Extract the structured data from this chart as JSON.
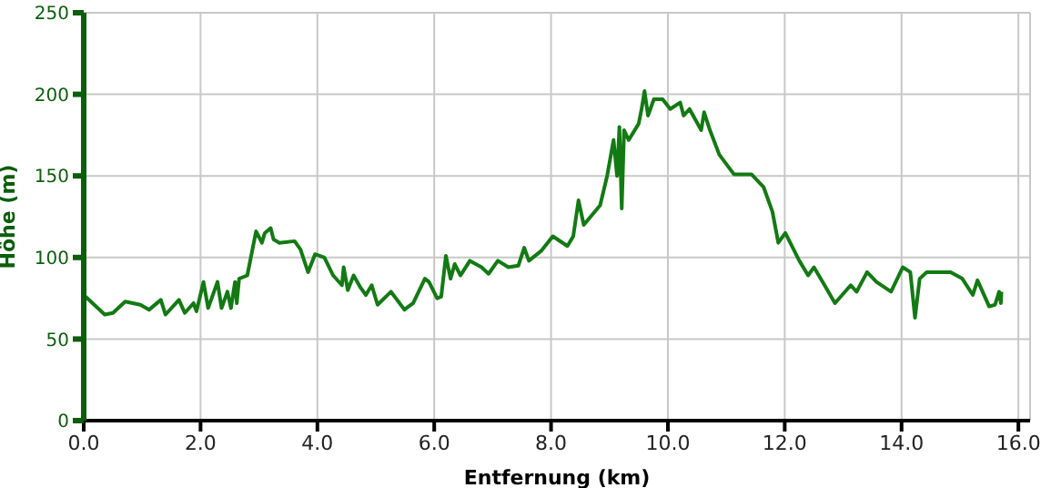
{
  "chart_data": {
    "type": "line",
    "xlabel": "Entfernung (km)",
    "ylabel": "Höhe (m)",
    "xlim": [
      0,
      16.2
    ],
    "ylim": [
      0,
      250
    ],
    "xticks": [
      {
        "value": 0,
        "label": "0.0"
      },
      {
        "value": 2,
        "label": "2.0"
      },
      {
        "value": 4,
        "label": "4.0"
      },
      {
        "value": 6,
        "label": "6.0"
      },
      {
        "value": 8,
        "label": "8.0"
      },
      {
        "value": 10,
        "label": "10.0"
      },
      {
        "value": 12,
        "label": "12.0"
      },
      {
        "value": 14,
        "label": "14.0"
      },
      {
        "value": 16,
        "label": "16.0"
      }
    ],
    "yticks": [
      0,
      50,
      100,
      150,
      200,
      250
    ],
    "grid": true,
    "legend": false,
    "marker": "none",
    "line_style": "solid",
    "series": [
      {
        "color": "#137a13",
        "x": [
          0.03,
          0.36,
          0.5,
          0.71,
          0.97,
          1.12,
          1.32,
          1.4,
          1.63,
          1.73,
          1.88,
          1.93,
          2.05,
          2.13,
          2.29,
          2.36,
          2.46,
          2.52,
          2.59,
          2.62,
          2.66,
          2.8,
          2.95,
          3.05,
          3.1,
          3.2,
          3.25,
          3.35,
          3.61,
          3.71,
          3.84,
          3.96,
          4.12,
          4.27,
          4.42,
          4.45,
          4.52,
          4.62,
          4.73,
          4.83,
          4.93,
          5.03,
          5.26,
          5.49,
          5.64,
          5.84,
          5.91,
          6.05,
          6.12,
          6.2,
          6.28,
          6.35,
          6.45,
          6.61,
          6.81,
          6.93,
          7.09,
          7.27,
          7.44,
          7.54,
          7.62,
          7.83,
          8.03,
          8.28,
          8.38,
          8.47,
          8.56,
          8.84,
          8.96,
          9.07,
          9.13,
          9.17,
          9.21,
          9.25,
          9.33,
          9.5,
          9.55,
          9.6,
          9.66,
          9.76,
          9.91,
          10.04,
          10.21,
          10.27,
          10.37,
          10.57,
          10.62,
          10.72,
          10.88,
          11.13,
          11.43,
          11.64,
          11.79,
          11.89,
          12.01,
          12.25,
          12.4,
          12.5,
          12.65,
          12.86,
          13.13,
          13.23,
          13.41,
          13.57,
          13.82,
          14.02,
          14.15,
          14.23,
          14.31,
          14.43,
          14.84,
          15.04,
          15.22,
          15.3,
          15.5,
          15.6,
          15.67,
          15.7,
          15.71
        ],
        "values": [
          76,
          65,
          66,
          73,
          71,
          68,
          74,
          65,
          74,
          66,
          72,
          67,
          85,
          69,
          85,
          69,
          79,
          69,
          85,
          72,
          87,
          89,
          116,
          109,
          115,
          118,
          111,
          109,
          110,
          105,
          91,
          102,
          100,
          89,
          83,
          94,
          80,
          89,
          82,
          77,
          83,
          71,
          79,
          68,
          72,
          87,
          85,
          75,
          76,
          101,
          87,
          96,
          89,
          98,
          94,
          90,
          98,
          94,
          95,
          106,
          98,
          104,
          113,
          107,
          113,
          135,
          120,
          132,
          150,
          172,
          150,
          180,
          130,
          178,
          172,
          182,
          191,
          202,
          187,
          197,
          197,
          191,
          195,
          187,
          191,
          178,
          189,
          178,
          163,
          151,
          151,
          143,
          128,
          109,
          115,
          98,
          89,
          94,
          85,
          72,
          83,
          79,
          91,
          85,
          79,
          94,
          91,
          63,
          87,
          91,
          91,
          87,
          77,
          86,
          70,
          71,
          79,
          72,
          79
        ]
      }
    ]
  }
}
